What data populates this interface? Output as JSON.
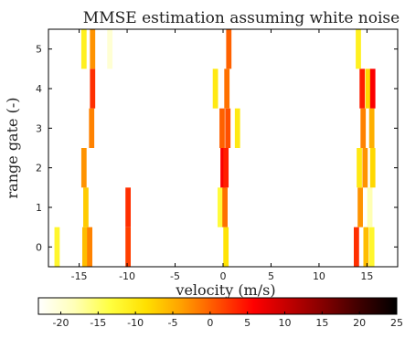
{
  "chart_data": {
    "type": "heatmap",
    "title": "MMSE estimation assuming white noise",
    "xlabel": "velocity (m/s)",
    "ylabel": "range gate (-)",
    "xlim": [
      -18.2,
      18.2
    ],
    "ylim": [
      -0.5,
      5.5
    ],
    "xticks": [
      -15,
      -10,
      -5,
      0,
      5,
      10,
      15
    ],
    "yticks": [
      0,
      1,
      2,
      3,
      4,
      5
    ],
    "cell_width": 0.55,
    "colorbar": {
      "ticks": [
        -20,
        -15,
        -10,
        -5,
        0,
        5,
        10,
        15,
        20,
        25
      ],
      "range": [
        -23,
        25
      ],
      "colors": [
        "#ffffff",
        "#ffffb8",
        "#ffff40",
        "#ffe000",
        "#ffa000",
        "#ff5000",
        "#ff0000",
        "#c00000",
        "#800000",
        "#3c0000",
        "#000000"
      ]
    },
    "cells": [
      {
        "x": -17.3,
        "y0": -0.5,
        "y1": 0.5,
        "value": -12
      },
      {
        "x": -14.4,
        "y0": -0.5,
        "y1": 0.5,
        "value": -6
      },
      {
        "x": -13.9,
        "y0": -0.5,
        "y1": 0.5,
        "value": -2
      },
      {
        "x": -14.3,
        "y0": 0.5,
        "y1": 1.5,
        "value": -7
      },
      {
        "x": -14.5,
        "y0": 1.5,
        "y1": 2.5,
        "value": -3
      },
      {
        "x": -13.7,
        "y0": 2.5,
        "y1": 3.5,
        "value": -2
      },
      {
        "x": -13.6,
        "y0": 3.5,
        "y1": 4.5,
        "value": 3
      },
      {
        "x": -14.5,
        "y0": 4.5,
        "y1": 5.5,
        "value": -11
      },
      {
        "x": -13.6,
        "y0": 4.5,
        "y1": 5.5,
        "value": -3
      },
      {
        "x": -11.8,
        "y0": 4.5,
        "y1": 5.5,
        "value": -20
      },
      {
        "x": -9.9,
        "y0": -0.5,
        "y1": 0.5,
        "value": 2
      },
      {
        "x": -9.9,
        "y0": 0.5,
        "y1": 1.5,
        "value": 3
      },
      {
        "x": 0.3,
        "y0": -0.5,
        "y1": 0.5,
        "value": -9
      },
      {
        "x": -0.3,
        "y0": 0.5,
        "y1": 1.5,
        "value": -13
      },
      {
        "x": 0.2,
        "y0": 0.5,
        "y1": 1.5,
        "value": -1
      },
      {
        "x": 0.0,
        "y0": 1.5,
        "y1": 2.5,
        "value": 6
      },
      {
        "x": 0.3,
        "y0": 1.5,
        "y1": 2.5,
        "value": 4
      },
      {
        "x": -0.1,
        "y0": 2.5,
        "y1": 3.5,
        "value": 0
      },
      {
        "x": 0.5,
        "y0": 2.5,
        "y1": 3.5,
        "value": 1
      },
      {
        "x": 1.5,
        "y0": 2.5,
        "y1": 3.5,
        "value": -10
      },
      {
        "x": -0.8,
        "y0": 3.5,
        "y1": 4.5,
        "value": -10
      },
      {
        "x": 0.4,
        "y0": 3.5,
        "y1": 4.5,
        "value": -1
      },
      {
        "x": 0.6,
        "y0": 4.5,
        "y1": 5.5,
        "value": 0
      },
      {
        "x": 13.9,
        "y0": -0.5,
        "y1": 0.5,
        "value": 3
      },
      {
        "x": 14.9,
        "y0": -0.5,
        "y1": 0.5,
        "value": -6
      },
      {
        "x": 15.5,
        "y0": -0.5,
        "y1": 0.5,
        "value": -12
      },
      {
        "x": 14.3,
        "y0": 0.5,
        "y1": 1.5,
        "value": -3
      },
      {
        "x": 15.3,
        "y0": 0.5,
        "y1": 1.5,
        "value": -18
      },
      {
        "x": 14.2,
        "y0": 1.5,
        "y1": 2.5,
        "value": -10
      },
      {
        "x": 14.8,
        "y0": 1.5,
        "y1": 2.5,
        "value": -3
      },
      {
        "x": 15.6,
        "y0": 1.5,
        "y1": 2.5,
        "value": -8
      },
      {
        "x": 14.6,
        "y0": 2.5,
        "y1": 3.5,
        "value": -2
      },
      {
        "x": 15.5,
        "y0": 2.5,
        "y1": 3.5,
        "value": -5
      },
      {
        "x": 14.5,
        "y0": 3.5,
        "y1": 4.5,
        "value": 4
      },
      {
        "x": 15.1,
        "y0": 3.5,
        "y1": 4.5,
        "value": -8
      },
      {
        "x": 15.6,
        "y0": 3.5,
        "y1": 4.5,
        "value": 6
      },
      {
        "x": 14.1,
        "y0": 4.5,
        "y1": 5.5,
        "value": -11
      }
    ]
  }
}
